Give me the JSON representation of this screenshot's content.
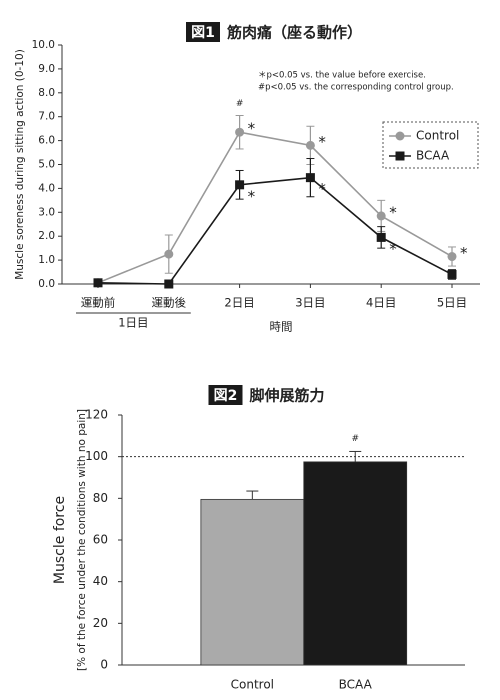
{
  "chart_data": [
    {
      "type": "line",
      "figure_label": "図1",
      "title": "筋肉痛（座る動作）",
      "y_label": "Muscle soreness during sitting action (0-10)",
      "x_label": "時間",
      "annotations": [
        "＊p<0.05 vs. the value before exercise.",
        "#p<0.05 vs. the corresponding control group."
      ],
      "categories": [
        "運動前",
        "運動後",
        "2日目",
        "3日目",
        "4日目",
        "5日目"
      ],
      "x_groups": [
        {
          "label": "1日目",
          "span": [
            0,
            1
          ]
        }
      ],
      "ylim": [
        0,
        10
      ],
      "yticks": [
        {
          "value": 0,
          "label": "0.0"
        },
        {
          "value": 1,
          "label": "1.0"
        },
        {
          "value": 2,
          "label": "2.0"
        },
        {
          "value": 3,
          "label": "3.0"
        },
        {
          "value": 4,
          "label": "4.0"
        },
        {
          "value": 5,
          "label": "5.0"
        },
        {
          "value": 6,
          "label": "6.0"
        },
        {
          "value": 7,
          "label": "7.0"
        },
        {
          "value": 8,
          "label": "8.0"
        },
        {
          "value": 9,
          "label": "9.0"
        },
        {
          "value": 10,
          "label": "10.0"
        }
      ],
      "legend": "right",
      "group_marks": [
        null,
        null,
        "#",
        null,
        null,
        null
      ],
      "series": [
        {
          "name": "Control",
          "color": "#999999",
          "marker": "circle",
          "values": [
            0.05,
            1.25,
            6.35,
            5.8,
            2.85,
            1.15
          ],
          "errors": [
            0,
            0.8,
            0.7,
            0.8,
            0.65,
            0.4
          ],
          "significance": [
            null,
            null,
            "*",
            "*",
            "*",
            "*"
          ]
        },
        {
          "name": "BCAA",
          "color": "#1a1a1a",
          "marker": "square",
          "values": [
            0.05,
            0.0,
            4.15,
            4.45,
            1.95,
            0.4
          ],
          "errors": [
            0,
            0,
            0.6,
            0.8,
            0.45,
            0.2
          ],
          "significance": [
            null,
            null,
            "*",
            "*",
            "*",
            null
          ]
        }
      ]
    },
    {
      "type": "bar",
      "figure_label": "図2",
      "title": "脚伸展筋力",
      "y_label": "Muscle force",
      "y_sublabel": "[% of the force under the conditions with no pain]",
      "categories": [
        "Control",
        "BCAA"
      ],
      "values": [
        79.5,
        97.5
      ],
      "errors": [
        4,
        5
      ],
      "colors": [
        "#aaaaaa",
        "#1a1a1a"
      ],
      "group_marks": [
        null,
        "#"
      ],
      "reference_line": 100,
      "ylim": [
        0,
        120
      ],
      "yticks": [
        0,
        20,
        40,
        60,
        80,
        100,
        120
      ]
    }
  ]
}
